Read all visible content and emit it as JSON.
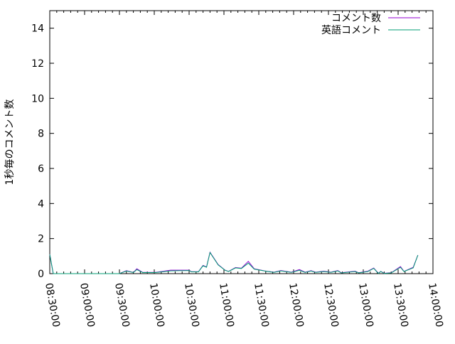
{
  "chart_data": {
    "type": "line",
    "title": "",
    "xlabel": "",
    "ylabel": "1秒毎のコメント数",
    "ylim": [
      0,
      15
    ],
    "xlim": [
      "08:30:00",
      "14:00:00"
    ],
    "yticks": [
      0,
      2,
      4,
      6,
      8,
      10,
      12,
      14
    ],
    "xticks": [
      "08:30:00",
      "09:00:00",
      "09:30:00",
      "10:00:00",
      "10:30:00",
      "11:00:00",
      "11:30:00",
      "12:00:00",
      "12:30:00",
      "13:00:00",
      "13:30:00",
      "14:00:00"
    ],
    "grid": false,
    "legend_position": "top-right",
    "series": [
      {
        "name": "コメント数",
        "color": "#9400d3",
        "x": [
          "08:30",
          "08:33",
          "09:30",
          "09:36",
          "09:42",
          "09:45",
          "09:50",
          "10:01",
          "10:14",
          "10:30",
          "10:32",
          "10:38",
          "10:42",
          "10:45",
          "10:48",
          "10:55",
          "11:01",
          "11:04",
          "11:10",
          "11:15",
          "11:21",
          "11:26",
          "11:35",
          "11:43",
          "11:49",
          "11:58",
          "12:05",
          "12:10",
          "12:15",
          "12:19",
          "12:26",
          "12:32",
          "12:38",
          "12:41",
          "12:53",
          "12:56",
          "13:04",
          "13:09",
          "13:13",
          "13:15",
          "13:18",
          "13:24",
          "13:32",
          "13:35",
          "13:43",
          "13:47"
        ],
        "y": [
          1.1,
          0,
          0,
          0.17,
          0.07,
          0.28,
          0.07,
          0.07,
          0.2,
          0.2,
          0.11,
          0.11,
          0.47,
          0.38,
          1.22,
          0.52,
          0.2,
          0.13,
          0.35,
          0.31,
          0.7,
          0.28,
          0.16,
          0.08,
          0.18,
          0.08,
          0.23,
          0.08,
          0.17,
          0.08,
          0.14,
          0.08,
          0.18,
          0.05,
          0.14,
          0.05,
          0.14,
          0.32,
          0.02,
          0.13,
          0.02,
          0.05,
          0.4,
          0.13,
          0.36,
          1.06
        ]
      },
      {
        "name": "英語コメント",
        "color": "#009e73",
        "x": [
          "08:30",
          "08:33",
          "09:30",
          "09:36",
          "09:42",
          "09:45",
          "09:50",
          "10:01",
          "10:14",
          "10:30",
          "10:32",
          "10:38",
          "10:42",
          "10:45",
          "10:48",
          "10:55",
          "11:01",
          "11:04",
          "11:10",
          "11:15",
          "11:21",
          "11:26",
          "11:35",
          "11:43",
          "11:49",
          "11:58",
          "12:05",
          "12:10",
          "12:15",
          "12:19",
          "12:26",
          "12:32",
          "12:38",
          "12:41",
          "12:53",
          "12:56",
          "13:04",
          "13:09",
          "13:13",
          "13:15",
          "13:18",
          "13:24",
          "13:32",
          "13:35",
          "13:43",
          "13:47"
        ],
        "y": [
          1.1,
          0,
          0,
          0.15,
          0.06,
          0.23,
          0.06,
          0.06,
          0.16,
          0.18,
          0.1,
          0.1,
          0.45,
          0.36,
          1.2,
          0.5,
          0.19,
          0.12,
          0.33,
          0.29,
          0.6,
          0.26,
          0.15,
          0.07,
          0.16,
          0.07,
          0.19,
          0.07,
          0.15,
          0.07,
          0.12,
          0.07,
          0.16,
          0.04,
          0.12,
          0.04,
          0.12,
          0.3,
          0.01,
          0.12,
          0.01,
          0.04,
          0.36,
          0.12,
          0.33,
          1.06
        ]
      }
    ]
  }
}
